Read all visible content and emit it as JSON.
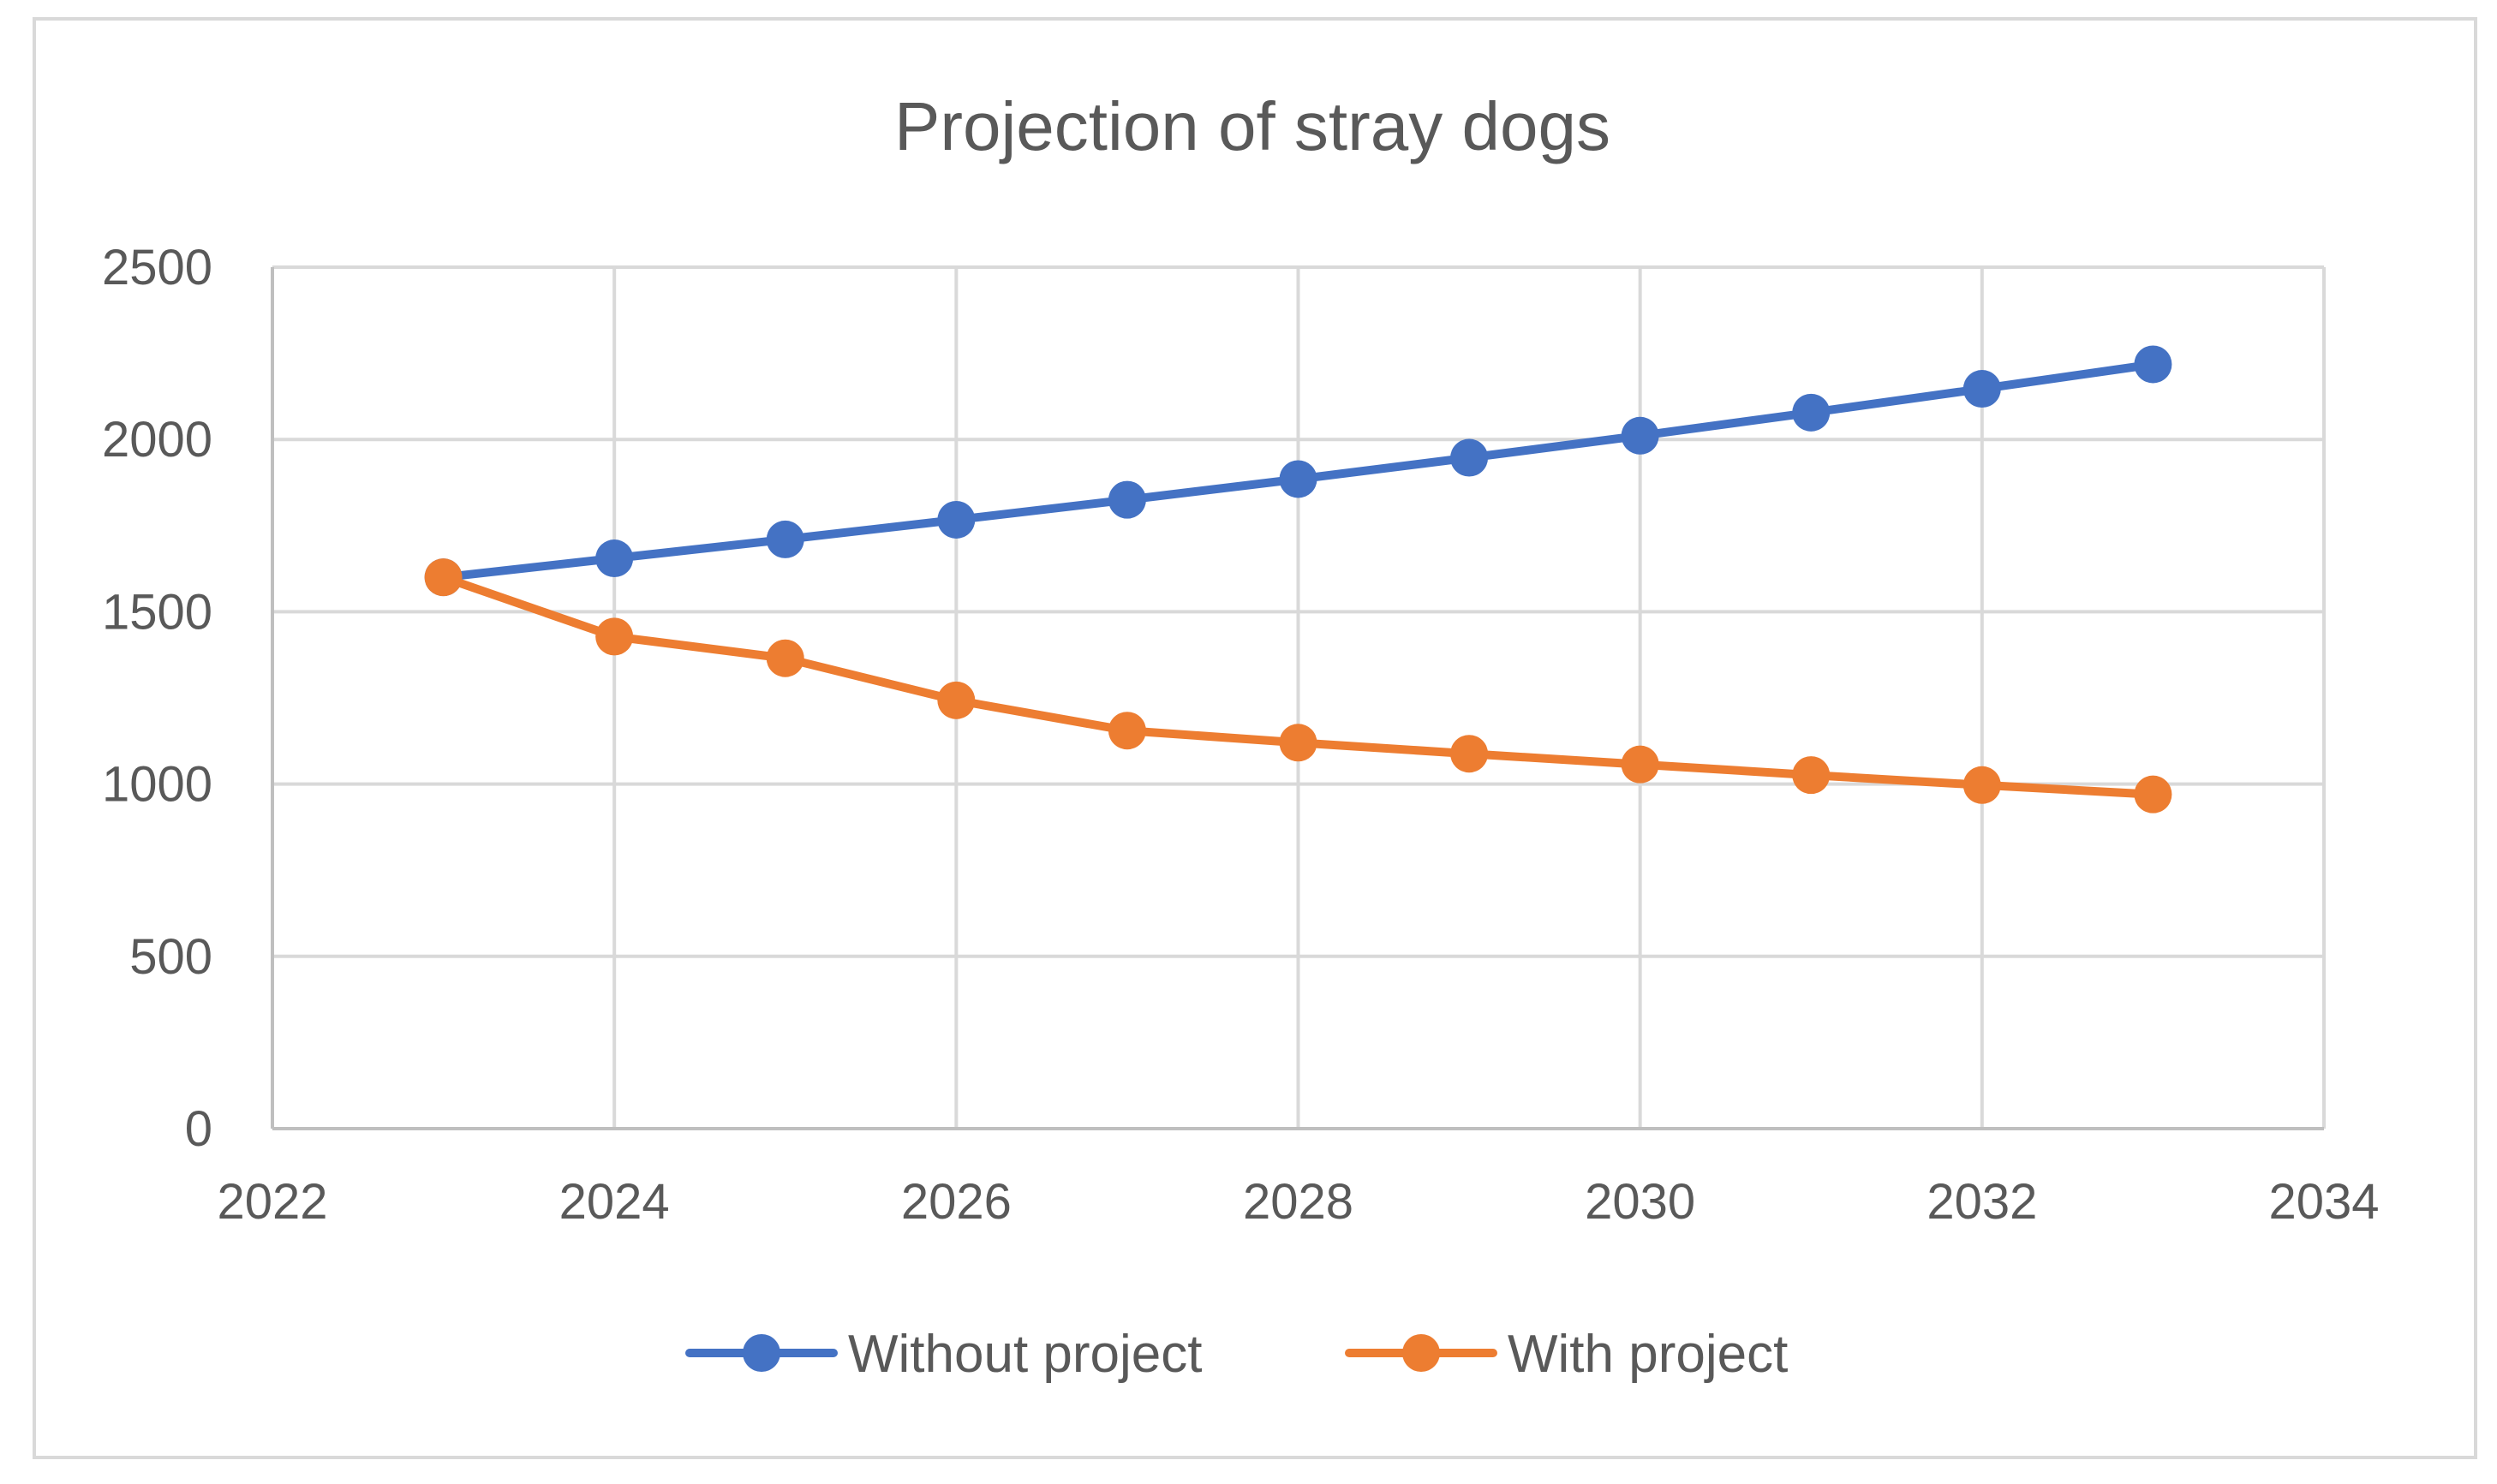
{
  "chart_data": {
    "type": "scatter",
    "title": "Projection of stray dogs",
    "xlabel": "",
    "ylabel": "",
    "xlim": [
      2022,
      2034
    ],
    "ylim": [
      0,
      2500
    ],
    "xticks": [
      2022,
      2024,
      2026,
      2028,
      2030,
      2032,
      2034
    ],
    "yticks": [
      0,
      500,
      1000,
      1500,
      2000,
      2500
    ],
    "grid": true,
    "legend_position": "bottom",
    "x": [
      2023,
      2024,
      2025,
      2026,
      2027,
      2028,
      2029,
      2030,
      2031,
      2032,
      2033
    ],
    "series": [
      {
        "name": "Without project",
        "color": "#4472C4",
        "values": [
          1600,
          1655,
          1710,
          1767,
          1825,
          1885,
          1947,
          2011,
          2078,
          2147,
          2218
        ]
      },
      {
        "name": "With project",
        "color": "#ED7D31",
        "values": [
          1600,
          1428,
          1365,
          1243,
          1155,
          1120,
          1088,
          1057,
          1026,
          997,
          970
        ]
      }
    ]
  }
}
